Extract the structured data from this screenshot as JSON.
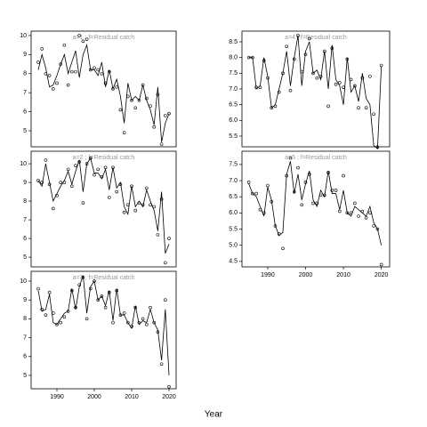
{
  "xlabel": "Year",
  "chart_data": [
    {
      "type": "line",
      "title": "a=1 ; f=Residual catch",
      "x": [
        1985,
        1986,
        1987,
        1988,
        1989,
        1990,
        1991,
        1992,
        1993,
        1994,
        1995,
        1996,
        1997,
        1998,
        1999,
        2000,
        2001,
        2002,
        2003,
        2004,
        2005,
        2006,
        2007,
        2008,
        2009,
        2010,
        2011,
        2012,
        2013,
        2014,
        2015,
        2016,
        2017,
        2018,
        2019,
        2020
      ],
      "xlim": [
        1983.1,
        2021.9
      ],
      "ylim": [
        4.16,
        10.23
      ],
      "yticks": [
        5,
        6,
        7,
        8,
        9,
        10
      ],
      "series": [
        {
          "style": "points",
          "color": "#000000",
          "values": [
            8.6,
            9.3,
            8.0,
            7.9,
            7.2,
            7.5,
            8.5,
            9.5,
            7.4,
            8.1,
            8.1,
            10.0,
            9.7,
            9.8,
            8.2,
            8.3,
            8.2,
            8.0,
            7.5,
            8.1,
            7.2,
            7.3,
            6.1,
            4.9,
            6.8,
            6.6,
            6.2,
            6.6,
            7.4,
            6.7,
            6.3,
            5.2,
            6.9,
            4.3,
            5.8,
            5.9
          ]
        },
        {
          "style": "line",
          "color": "#000000",
          "values": [
            8.2,
            9.0,
            8.3,
            7.3,
            7.4,
            7.9,
            8.5,
            9.0,
            8.0,
            8.6,
            9.2,
            7.8,
            9.0,
            9.5,
            8.2,
            8.2,
            7.9,
            8.6,
            7.3,
            8.2,
            7.2,
            7.7,
            6.8,
            5.4,
            7.5,
            6.6,
            6.8,
            6.6,
            7.4,
            6.6,
            6.1,
            5.3,
            7.3,
            4.4,
            5.4,
            5.9
          ]
        }
      ]
    },
    {
      "type": "line",
      "title": "a=2 ; f=Residual catch",
      "x": [
        1985,
        1986,
        1987,
        1988,
        1989,
        1990,
        1991,
        1992,
        1993,
        1994,
        1995,
        1996,
        1997,
        1998,
        1999,
        2000,
        2001,
        2002,
        2003,
        2004,
        2005,
        2006,
        2007,
        2008,
        2009,
        2010,
        2011,
        2012,
        2013,
        2014,
        2015,
        2016,
        2017,
        2018,
        2019,
        2020
      ],
      "xlim": [
        1983.1,
        2021.9
      ],
      "ylim": [
        4.48,
        10.67
      ],
      "yticks": [
        5,
        6,
        7,
        8,
        9,
        10
      ],
      "series": [
        {
          "style": "points",
          "color": "#000000",
          "values": [
            9.1,
            9.0,
            10.2,
            8.9,
            7.6,
            8.3,
            9.0,
            9.0,
            9.7,
            8.8,
            9.9,
            10.1,
            7.9,
            10.0,
            10.3,
            9.4,
            9.7,
            9.3,
            9.8,
            8.2,
            9.8,
            8.5,
            8.9,
            7.4,
            7.8,
            8.8,
            7.5,
            7.9,
            7.8,
            8.7,
            7.8,
            7.7,
            6.2,
            8.1,
            4.7,
            6.0
          ]
        },
        {
          "style": "line",
          "color": "#000000",
          "values": [
            9.1,
            8.8,
            10.0,
            9.0,
            8.0,
            8.4,
            8.8,
            9.1,
            9.6,
            8.9,
            9.6,
            10.2,
            8.5,
            10.0,
            10.3,
            9.5,
            9.5,
            9.2,
            9.7,
            8.6,
            9.8,
            8.7,
            9.0,
            7.7,
            7.3,
            8.8,
            7.7,
            8.0,
            7.7,
            8.6,
            8.0,
            7.5,
            6.4,
            8.5,
            5.2,
            5.7
          ]
        }
      ]
    },
    {
      "type": "line",
      "title": "a=3 ; f=Residual catch",
      "x": [
        1985,
        1986,
        1987,
        1988,
        1989,
        1990,
        1991,
        1992,
        1993,
        1994,
        1995,
        1996,
        1997,
        1998,
        1999,
        2000,
        2001,
        2002,
        2003,
        2004,
        2005,
        2006,
        2007,
        2008,
        2009,
        2010,
        2011,
        2012,
        2013,
        2014,
        2015,
        2016,
        2017,
        2018,
        2019,
        2020
      ],
      "xlim": [
        1983.1,
        2021.9
      ],
      "ylim": [
        4.29,
        10.52
      ],
      "yticks": [
        5,
        6,
        7,
        8,
        9,
        10
      ],
      "xticks": [
        1990,
        2000,
        2010,
        2020
      ],
      "series": [
        {
          "style": "points",
          "color": "#000000",
          "values": [
            9.6,
            8.5,
            8.2,
            9.4,
            8.3,
            7.7,
            7.8,
            8.1,
            8.4,
            9.5,
            8.6,
            9.8,
            10.2,
            8.0,
            9.6,
            10.0,
            9.0,
            9.2,
            8.6,
            9.4,
            7.8,
            9.5,
            8.2,
            8.3,
            7.8,
            7.6,
            8.6,
            7.8,
            8.0,
            7.7,
            8.6,
            7.8,
            7.3,
            5.6,
            9.0,
            4.4
          ]
        },
        {
          "style": "line",
          "color": "#000000",
          "values": [
            9.5,
            8.4,
            8.5,
            9.3,
            7.8,
            7.7,
            8.0,
            8.3,
            8.4,
            9.6,
            8.5,
            9.7,
            10.3,
            8.3,
            9.7,
            10.0,
            9.0,
            9.2,
            8.7,
            9.5,
            7.9,
            9.6,
            8.2,
            8.2,
            7.8,
            7.5,
            8.7,
            7.7,
            7.9,
            7.8,
            8.5,
            7.8,
            7.4,
            5.8,
            8.5,
            5.0
          ]
        }
      ]
    },
    {
      "type": "line",
      "title": "a=4 ; f=Residual catch",
      "x": [
        1985,
        1986,
        1987,
        1988,
        1989,
        1990,
        1991,
        1992,
        1993,
        1994,
        1995,
        1996,
        1997,
        1998,
        1999,
        2000,
        2001,
        2002,
        2003,
        2004,
        2005,
        2006,
        2007,
        2008,
        2009,
        2010,
        2011,
        2012,
        2013,
        2014,
        2015,
        2016,
        2017,
        2018,
        2019,
        2020
      ],
      "xlim": [
        1983.2,
        2022.2
      ],
      "ylim": [
        5.16,
        8.84
      ],
      "yticks": [
        5.5,
        {
          "value": 6,
          "label": "6.0"
        },
        6.5,
        {
          "value": 7,
          "label": "7.0"
        },
        7.5,
        {
          "value": 8,
          "label": "8.0"
        },
        8.5
      ],
      "series": [
        {
          "style": "points",
          "color": "#000000",
          "values": [
            8.0,
            8.0,
            7.05,
            7.05,
            7.9,
            7.35,
            6.4,
            6.45,
            6.9,
            7.5,
            8.35,
            6.95,
            7.95,
            8.7,
            7.55,
            8.1,
            8.6,
            7.5,
            7.35,
            7.4,
            8.2,
            6.45,
            8.3,
            7.15,
            7.2,
            7.05,
            7.95,
            7.3,
            7.1,
            6.4,
            7.35,
            6.4,
            7.4,
            6.2,
            5.15,
            7.75
          ]
        },
        {
          "style": "line",
          "color": "#000000",
          "values": [
            8.0,
            8.0,
            7.0,
            7.1,
            8.0,
            7.4,
            6.4,
            6.5,
            7.0,
            7.5,
            8.2,
            7.1,
            8.0,
            8.7,
            7.1,
            8.2,
            8.5,
            7.5,
            7.6,
            7.3,
            8.2,
            7.0,
            8.4,
            7.3,
            7.1,
            6.5,
            8.0,
            6.9,
            7.1,
            6.6,
            7.5,
            6.7,
            6.5,
            5.2,
            5.1,
            7.7
          ]
        }
      ]
    },
    {
      "type": "line",
      "title": "a=5 ; f=Residual catch",
      "x": [
        1985,
        1986,
        1987,
        1988,
        1989,
        1990,
        1991,
        1992,
        1993,
        1994,
        1995,
        1996,
        1997,
        1998,
        1999,
        2000,
        2001,
        2002,
        2003,
        2004,
        2005,
        2006,
        2007,
        2008,
        2009,
        2010,
        2011,
        2012,
        2013,
        2014,
        2015,
        2016,
        2017,
        2018,
        2019,
        2020
      ],
      "xlim": [
        1983.2,
        2022.2
      ],
      "ylim": [
        4.33,
        7.91
      ],
      "xticks": [
        1990,
        2000,
        2010,
        2020
      ],
      "yticks": [
        4.5,
        {
          "value": 5,
          "label": "5.0"
        },
        5.5,
        {
          "value": 6,
          "label": "6.0"
        },
        6.5,
        {
          "value": 7,
          "label": "7.0"
        },
        7.5
      ],
      "series": [
        {
          "style": "points",
          "color": "#000000",
          "values": [
            6.95,
            6.6,
            6.6,
            6.1,
            6.0,
            6.85,
            6.35,
            5.6,
            5.35,
            4.9,
            7.15,
            7.7,
            6.65,
            7.4,
            6.25,
            6.95,
            7.2,
            6.3,
            6.3,
            6.55,
            6.55,
            7.25,
            6.7,
            6.7,
            6.05,
            7.15,
            6.0,
            6.0,
            6.3,
            5.9,
            6.05,
            5.85,
            6.0,
            5.6,
            5.5,
            4.4
          ]
        },
        {
          "style": "line",
          "color": "#000000",
          "values": [
            6.9,
            6.6,
            6.5,
            6.2,
            5.9,
            6.8,
            6.4,
            5.6,
            5.3,
            5.4,
            7.2,
            7.6,
            6.6,
            7.2,
            6.4,
            6.9,
            7.3,
            6.4,
            6.2,
            6.7,
            6.5,
            7.3,
            6.6,
            6.6,
            6.1,
            6.7,
            6.0,
            5.9,
            6.2,
            6.1,
            6.0,
            5.9,
            6.2,
            5.7,
            5.5,
            5.0
          ]
        }
      ]
    }
  ]
}
